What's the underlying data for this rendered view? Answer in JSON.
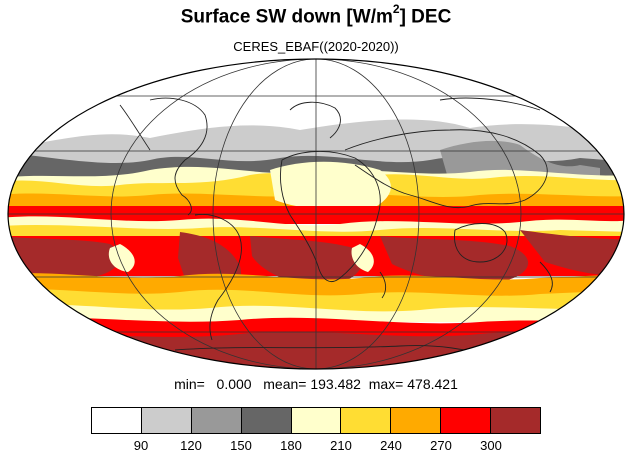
{
  "title": {
    "main": "Surface SW down [W/m",
    "sup": "2",
    "rest": "]  DEC"
  },
  "subtitle": "CERES_EBAF((2020-2020))",
  "stats": {
    "min_label": "min=",
    "min_value": "0.000",
    "mean_label": "mean=",
    "mean_value": "193.482",
    "max_label": "max=",
    "max_value": "478.421"
  },
  "colorbar": {
    "colors": [
      "#ffffff",
      "#cccccc",
      "#999999",
      "#666666",
      "#ffffcc",
      "#ffdd33",
      "#ffaa00",
      "#ff0000",
      "#a52a2a"
    ],
    "labels": [
      "90",
      "120",
      "150",
      "180",
      "210",
      "240",
      "270",
      "300"
    ]
  },
  "map": {
    "projection": "mollweide",
    "band_colors": {
      "white": "#ffffff",
      "light_gray": "#cccccc",
      "mid_gray": "#999999",
      "dark_gray": "#666666",
      "pale_yellow": "#ffffcc",
      "yellow": "#ffdd33",
      "orange": "#ffaa00",
      "red": "#ff0000",
      "dark_red": "#a52a2a"
    }
  }
}
